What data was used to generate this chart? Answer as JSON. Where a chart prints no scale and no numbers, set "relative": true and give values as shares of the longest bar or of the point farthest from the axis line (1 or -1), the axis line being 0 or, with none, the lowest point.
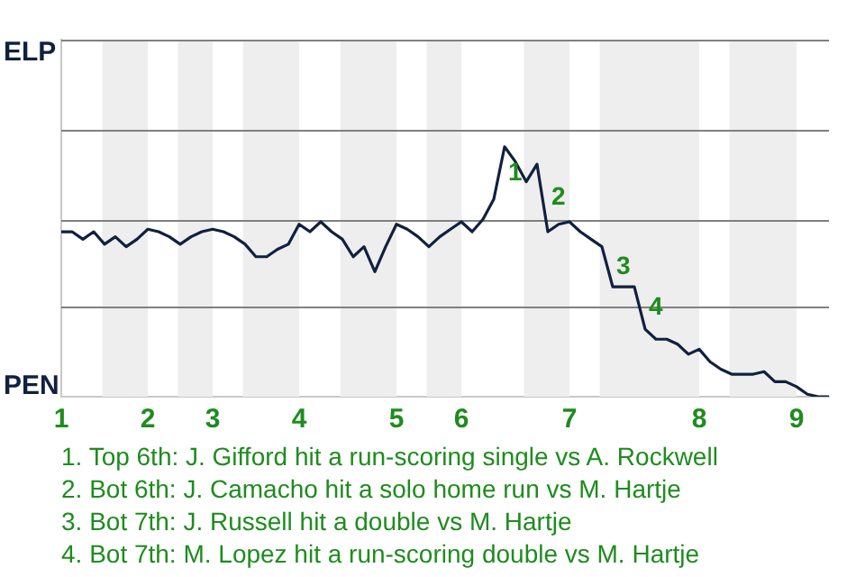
{
  "chart_data": {
    "type": "line",
    "relative": true,
    "categories": [
      "1",
      null,
      null,
      null,
      null,
      null,
      null,
      null,
      "2",
      null,
      null,
      null,
      null,
      null,
      "3",
      null,
      null,
      null,
      null,
      null,
      null,
      null,
      "4",
      null,
      null,
      null,
      null,
      null,
      null,
      null,
      null,
      "5",
      null,
      null,
      null,
      null,
      null,
      "6",
      null,
      null,
      null,
      null,
      null,
      null,
      null,
      null,
      null,
      "7",
      null,
      null,
      null,
      null,
      null,
      null,
      null,
      null,
      null,
      null,
      null,
      "8",
      null,
      null,
      null,
      null,
      null,
      null,
      null,
      null,
      "9",
      null,
      null,
      null
    ],
    "series": [
      {
        "color": "#10213f",
        "values": [
          0.66,
          0.66,
          0.63,
          0.66,
          0.61,
          0.64,
          0.6,
          0.63,
          0.67,
          0.66,
          0.64,
          0.61,
          0.64,
          0.66,
          0.67,
          0.66,
          0.64,
          0.61,
          0.56,
          0.56,
          0.59,
          0.61,
          0.69,
          0.66,
          0.7,
          0.66,
          0.63,
          0.56,
          0.6,
          0.5,
          0.6,
          0.69,
          0.67,
          0.64,
          0.6,
          0.64,
          0.67,
          0.7,
          0.66,
          0.71,
          0.79,
          1,
          0.94,
          0.86,
          0.93,
          0.66,
          0.69,
          0.7,
          0.66,
          0.63,
          0.6,
          0.44,
          0.44,
          0.44,
          0.27,
          0.23,
          0.23,
          0.21,
          0.17,
          0.19,
          0.14,
          0.11,
          0.09,
          0.09,
          0.09,
          0.1,
          0.06,
          0.06,
          0.04,
          0.01,
          0,
          0
        ]
      }
    ],
    "legend": false,
    "ref_lines": [
      {
        "axis": "y",
        "value": 0.36,
        "color": "#808080"
      },
      {
        "axis": "y",
        "value": 0.71,
        "color": "#808080"
      },
      {
        "axis": "y",
        "value": 1.07,
        "color": "#808080"
      }
    ],
    "marker": "none",
    "line_style": "solid",
    "annotations": [
      "ELP",
      "PEN",
      "1",
      "2",
      "3",
      "4",
      "1. Top 6th: J. Gifford hit a run-scoring single vs A. Rockwell",
      "2. Bot 6th: J. Camacho hit a solo home run vs M. Hartje",
      "3. Bot 7th: J. Russell hit a double vs M. Hartje",
      "4. Bot 7th: M. Lopez hit a run-scoring double vs M. Hartje"
    ]
  }
}
